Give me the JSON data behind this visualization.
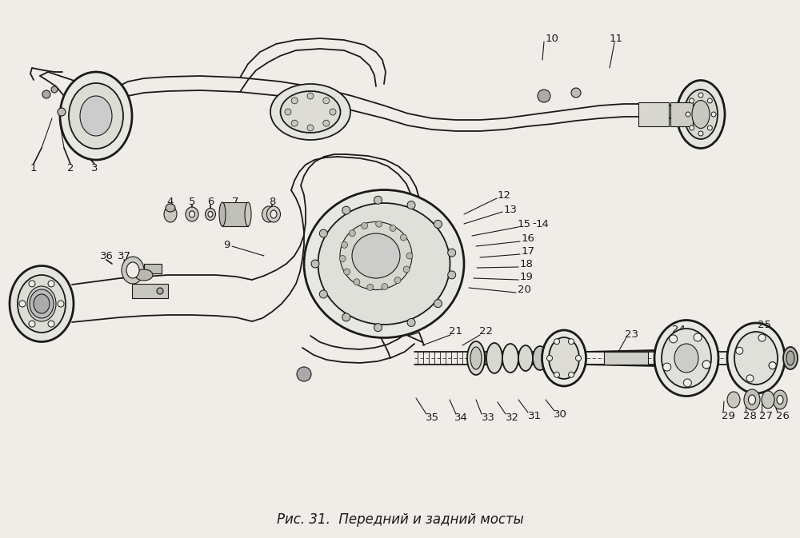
{
  "caption": "Рис. 31.  Передний и задний мосты",
  "caption_fontsize": 12,
  "bg_color": "#f0ede8",
  "fig_width": 10.0,
  "fig_height": 6.73,
  "dpi": 100,
  "line_color": "#1a1a1a"
}
